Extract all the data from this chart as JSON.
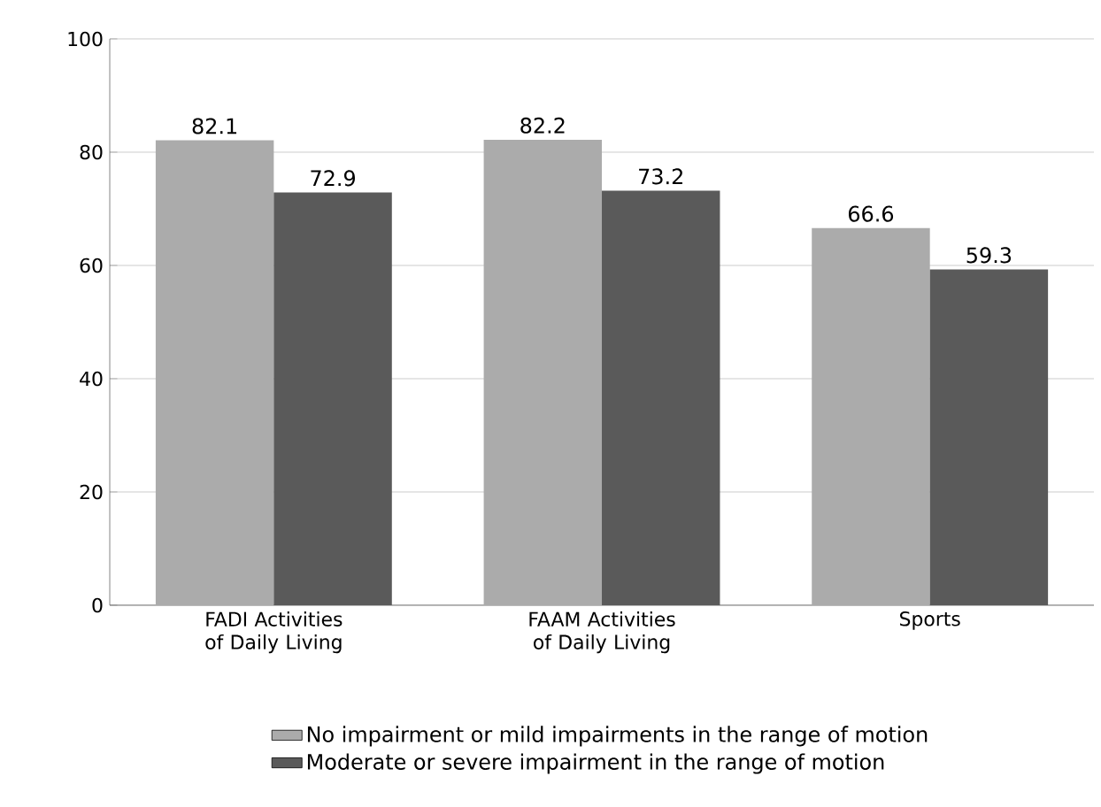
{
  "chart_data": {
    "type": "bar",
    "categories": [
      "FADI Activities of Daily Living",
      "FAAM Activities of Daily Living",
      "Sports"
    ],
    "series": [
      {
        "name": "No impairment or mild impairments in the range of motion",
        "color": "#ababab",
        "values": [
          82.1,
          82.2,
          66.6
        ],
        "value_labels": [
          "82.1",
          "82.2",
          "66.6"
        ]
      },
      {
        "name": "Moderate or severe impairment in the range of motion",
        "color": "#5a5a5a",
        "values": [
          72.9,
          73.2,
          59.3
        ],
        "value_labels": [
          "72.9",
          "73.2",
          "59.3"
        ]
      }
    ],
    "ylim": [
      0,
      100
    ],
    "yticks": [
      0,
      20,
      40,
      60,
      80,
      100
    ],
    "grid": "y",
    "legend": "bottom"
  }
}
